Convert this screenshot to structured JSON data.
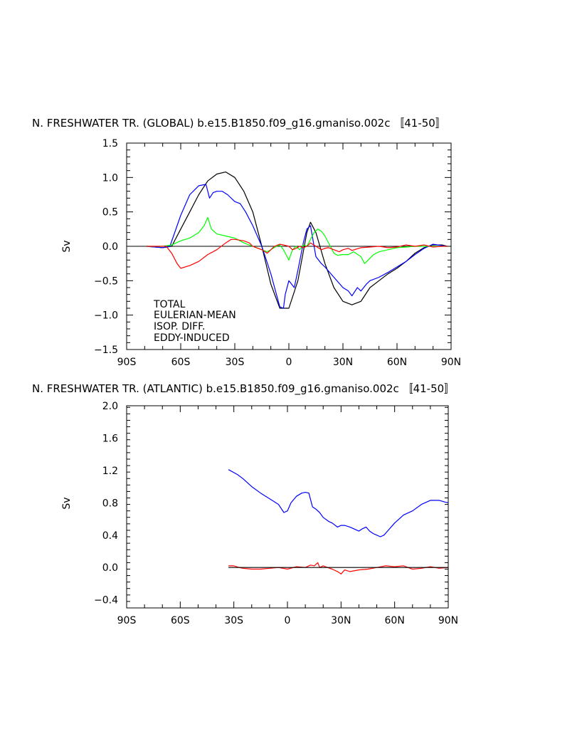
{
  "chart_data": [
    {
      "type": "line",
      "title": "N. FRESHWATER TR. (GLOBAL) b.e15.B1850.f09_g16.gmaniso.002c 〚41-50〛",
      "xlabel": "",
      "ylabel": "Sv",
      "xlim": [
        -90,
        90
      ],
      "ylim": [
        -1.5,
        1.5
      ],
      "xticks": [
        -90,
        -60,
        -30,
        0,
        30,
        60,
        90
      ],
      "xtick_labels": [
        "90S",
        "60S",
        "30S",
        "0",
        "30N",
        "60N",
        "90N"
      ],
      "yticks": [
        -1.5,
        -1.0,
        -0.5,
        0.0,
        0.5,
        1.0,
        1.5
      ],
      "ytick_labels": [
        "−1.5",
        "−1.0",
        "−0.5",
        "0.0",
        "0.5",
        "1.0",
        "1.5"
      ],
      "grid": false,
      "legend_position": "bottom-left",
      "series": [
        {
          "name": "TOTAL",
          "color": "#000000",
          "x": [
            -79,
            -70,
            -65,
            -60,
            -55,
            -50,
            -45,
            -40,
            -35,
            -30,
            -25,
            -20,
            -15,
            -10,
            -5,
            0,
            5,
            10,
            12,
            15,
            20,
            25,
            30,
            35,
            40,
            45,
            50,
            55,
            60,
            65,
            70,
            75,
            80,
            85,
            88
          ],
          "y": [
            0.0,
            -0.02,
            0.0,
            0.25,
            0.5,
            0.75,
            0.95,
            1.05,
            1.08,
            1.0,
            0.8,
            0.5,
            0.0,
            -0.55,
            -0.9,
            -0.9,
            -0.5,
            0.2,
            0.35,
            0.2,
            -0.25,
            -0.6,
            -0.8,
            -0.85,
            -0.8,
            -0.6,
            -0.5,
            -0.4,
            -0.32,
            -0.22,
            -0.1,
            -0.02,
            0.02,
            0.02,
            0.0
          ]
        },
        {
          "name": "EULERIAN-MEAN",
          "color": "#0000ff",
          "x": [
            -79,
            -70,
            -66,
            -60,
            -55,
            -50,
            -46,
            -44,
            -42,
            -40,
            -37,
            -34,
            -30,
            -27,
            -24,
            -20,
            -15,
            -10,
            -5,
            -3,
            -2,
            0,
            3,
            5,
            8,
            10,
            12,
            15,
            18,
            20,
            25,
            30,
            33,
            35,
            38,
            40,
            43,
            45,
            50,
            55,
            60,
            65,
            70,
            75,
            80,
            85,
            88
          ],
          "y": [
            0.0,
            -0.02,
            0.0,
            0.45,
            0.75,
            0.88,
            0.9,
            0.7,
            0.78,
            0.8,
            0.8,
            0.75,
            0.65,
            0.62,
            0.5,
            0.3,
            0.0,
            -0.4,
            -0.88,
            -0.9,
            -0.7,
            -0.5,
            -0.6,
            -0.35,
            0.05,
            0.25,
            0.3,
            -0.15,
            -0.25,
            -0.3,
            -0.45,
            -0.6,
            -0.65,
            -0.72,
            -0.6,
            -0.65,
            -0.55,
            -0.5,
            -0.45,
            -0.38,
            -0.3,
            -0.22,
            -0.12,
            -0.03,
            0.03,
            0.01,
            0.0
          ]
        },
        {
          "name": "ISOP. DIFF.",
          "color": "#00ff00",
          "x": [
            -79,
            -70,
            -65,
            -60,
            -55,
            -50,
            -47,
            -45,
            -43,
            -40,
            -35,
            -30,
            -25,
            -20,
            -15,
            -12,
            -10,
            -7,
            -5,
            -3,
            -1,
            0,
            2,
            4,
            6,
            8,
            10,
            12,
            14,
            16,
            18,
            20,
            23,
            25,
            27,
            30,
            33,
            36,
            40,
            42,
            44,
            47,
            50,
            55,
            60,
            65,
            70,
            75,
            80,
            85,
            88
          ],
          "y": [
            0.0,
            0.0,
            0.02,
            0.08,
            0.12,
            0.2,
            0.3,
            0.42,
            0.25,
            0.18,
            0.15,
            0.12,
            0.05,
            0.0,
            -0.05,
            -0.08,
            -0.05,
            0.0,
            0.02,
            -0.05,
            -0.15,
            -0.2,
            -0.05,
            0.0,
            -0.05,
            0.02,
            0.0,
            0.1,
            0.2,
            0.25,
            0.22,
            0.15,
            0.0,
            -0.1,
            -0.13,
            -0.12,
            -0.12,
            -0.08,
            -0.15,
            -0.25,
            -0.2,
            -0.12,
            -0.08,
            -0.05,
            -0.02,
            -0.01,
            0.0,
            0.0,
            0.0,
            0.0,
            0.0
          ]
        },
        {
          "name": "EDDY-INDUCED",
          "color": "#ff0000",
          "x": [
            -79,
            -68,
            -65,
            -62,
            -60,
            -55,
            -50,
            -45,
            -40,
            -35,
            -32,
            -30,
            -25,
            -22,
            -20,
            -17,
            -15,
            -12,
            -10,
            -8,
            -5,
            -3,
            0,
            2,
            4,
            6,
            8,
            10,
            12,
            15,
            18,
            20,
            22,
            25,
            28,
            30,
            33,
            35,
            40,
            45,
            50,
            55,
            60,
            65,
            70,
            75,
            80,
            85,
            88
          ],
          "y": [
            0.0,
            0.0,
            -0.1,
            -0.25,
            -0.32,
            -0.28,
            -0.22,
            -0.12,
            -0.05,
            0.05,
            0.1,
            0.1,
            0.08,
            0.05,
            0.0,
            -0.03,
            -0.05,
            -0.1,
            -0.05,
            0.0,
            0.03,
            0.02,
            0.0,
            -0.05,
            -0.03,
            0.0,
            -0.02,
            0.0,
            0.05,
            0.0,
            -0.05,
            -0.03,
            -0.02,
            -0.05,
            -0.08,
            -0.05,
            -0.03,
            -0.06,
            -0.02,
            -0.01,
            0.0,
            -0.02,
            -0.01,
            0.02,
            0.0,
            0.02,
            -0.01,
            0.0,
            0.0
          ]
        }
      ]
    },
    {
      "type": "line",
      "title": "N. FRESHWATER TR. (ATLANTIC) b.e15.B1850.f09_g16.gmaniso.002c 〚41-50〛",
      "xlabel": "",
      "ylabel": "Sv",
      "xlim": [
        -90,
        90
      ],
      "ylim": [
        -0.5,
        2.0
      ],
      "xticks": [
        -90,
        -60,
        -30,
        0,
        30,
        60,
        90
      ],
      "xtick_labels": [
        "90S",
        "60S",
        "30S",
        "0",
        "30N",
        "60N",
        "90N"
      ],
      "yticks": [
        -0.4,
        0.0,
        0.4,
        0.8,
        1.2,
        1.6,
        2.0
      ],
      "ytick_labels": [
        "−0.4",
        "0.0",
        "0.4",
        "0.8",
        "1.2",
        "1.6",
        "2.0"
      ],
      "grid": false,
      "series": [
        {
          "color": "#0000ff",
          "x": [
            -33,
            -28,
            -25,
            -20,
            -15,
            -10,
            -5,
            -2,
            0,
            2,
            5,
            8,
            10,
            12,
            14,
            16,
            18,
            20,
            23,
            25,
            28,
            30,
            32,
            35,
            37,
            40,
            42,
            44,
            46,
            48,
            50,
            52,
            54,
            56,
            60,
            65,
            70,
            75,
            80,
            85,
            88,
            90
          ],
          "y": [
            1.21,
            1.15,
            1.1,
            1.0,
            0.92,
            0.85,
            0.78,
            0.68,
            0.7,
            0.8,
            0.88,
            0.92,
            0.93,
            0.92,
            0.75,
            0.72,
            0.68,
            0.62,
            0.57,
            0.55,
            0.5,
            0.52,
            0.52,
            0.5,
            0.48,
            0.45,
            0.48,
            0.5,
            0.45,
            0.42,
            0.4,
            0.38,
            0.4,
            0.45,
            0.55,
            0.65,
            0.7,
            0.78,
            0.83,
            0.83,
            0.81,
            0.8
          ]
        },
        {
          "color": "#ff0000",
          "x": [
            -33,
            -30,
            -27,
            -25,
            -20,
            -15,
            -10,
            -5,
            0,
            5,
            10,
            13,
            15,
            17,
            18,
            20,
            25,
            28,
            30,
            32,
            35,
            40,
            45,
            50,
            55,
            60,
            65,
            70,
            75,
            80,
            85,
            90
          ],
          "y": [
            0.02,
            0.02,
            0.0,
            -0.01,
            -0.02,
            -0.02,
            -0.01,
            0.0,
            -0.02,
            0.01,
            0.0,
            0.03,
            0.02,
            0.06,
            0.0,
            0.02,
            -0.02,
            -0.05,
            -0.08,
            -0.03,
            -0.05,
            -0.03,
            -0.02,
            0.0,
            0.02,
            0.01,
            0.02,
            -0.02,
            -0.01,
            0.01,
            -0.01,
            0.0
          ]
        },
        {
          "color": "#000000",
          "x": [
            -33,
            90
          ],
          "y": [
            0.0,
            0.0
          ]
        }
      ]
    }
  ]
}
